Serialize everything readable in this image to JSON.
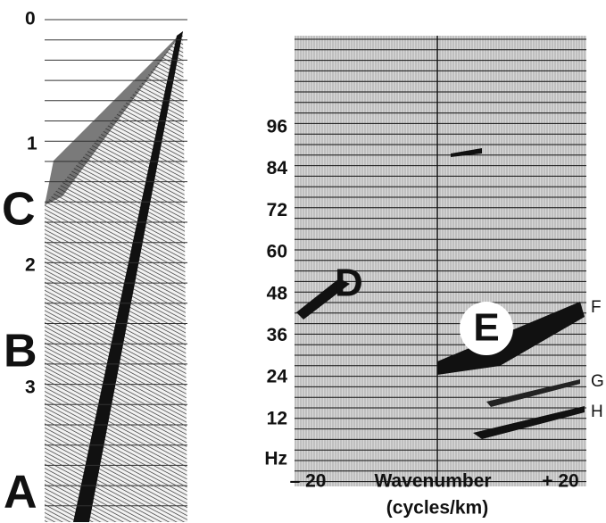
{
  "shot_record": {
    "time_labels": [
      "0",
      "1",
      "2",
      "3"
    ],
    "markers": [
      "C",
      "B",
      "A"
    ]
  },
  "fk_spectrum": {
    "frequency_labels": [
      "96",
      "84",
      "72",
      "60",
      "48",
      "36",
      "24",
      "12"
    ],
    "frequency_unit": "Hz",
    "x_labels": [
      "– 20",
      "Wavenumber",
      "+ 20"
    ],
    "x_unit": "(cycles/km)",
    "annotations": [
      "D",
      "E",
      "F",
      "G",
      "H"
    ]
  }
}
